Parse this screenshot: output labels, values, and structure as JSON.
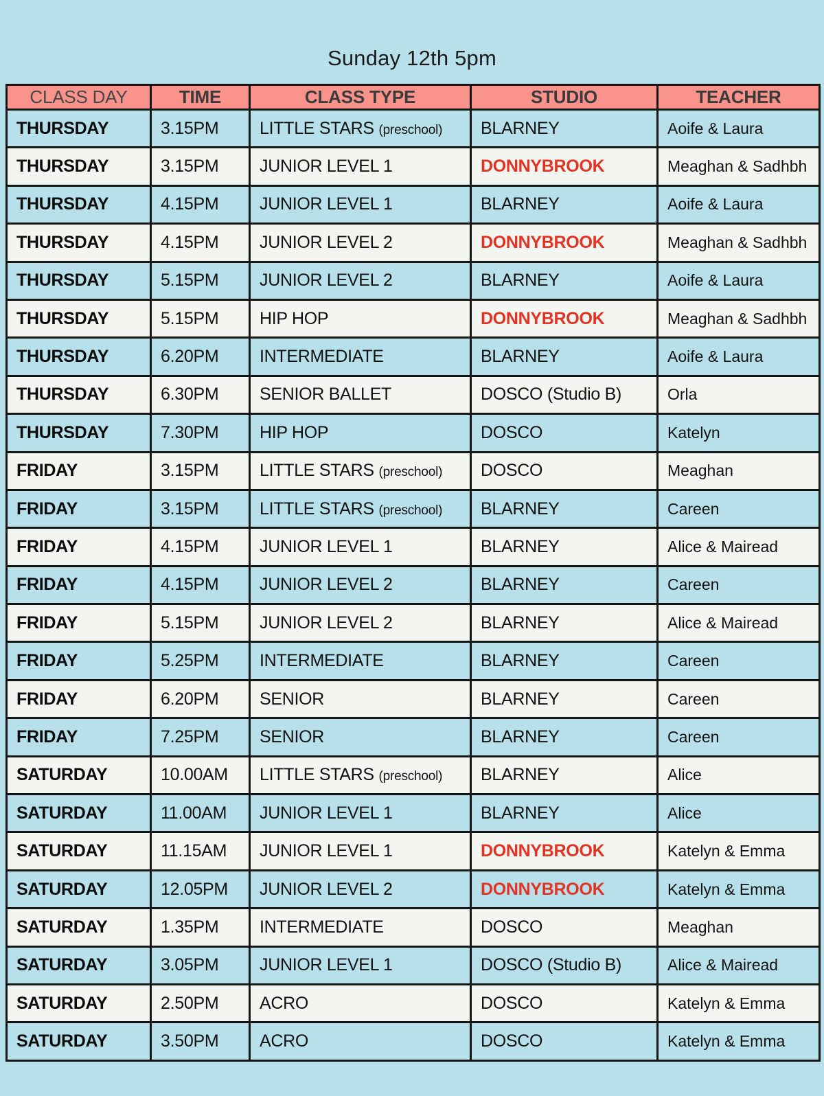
{
  "title": "Sunday 12th 5pm",
  "colors": {
    "page_background": "#b7e0ea",
    "header_background": "#f9938b",
    "row_alt_background": "#f3f5f0",
    "border": "#161616",
    "studio_highlight_text": "#e23323"
  },
  "table": {
    "headers": [
      "CLASS DAY",
      "TIME",
      "CLASS TYPE",
      "STUDIO",
      "TEACHER"
    ],
    "rows": [
      {
        "day": "THURSDAY",
        "time": "3.15PM",
        "class_type": "LITTLE STARS",
        "class_note": "(preschool)",
        "studio": "BLARNEY",
        "studio_highlight": false,
        "teacher": "Aoife & Laura"
      },
      {
        "day": "THURSDAY",
        "time": "3.15PM",
        "class_type": "JUNIOR LEVEL 1",
        "class_note": "",
        "studio": "DONNYBROOK",
        "studio_highlight": true,
        "teacher": "Meaghan & Sadhbh"
      },
      {
        "day": "THURSDAY",
        "time": "4.15PM",
        "class_type": "JUNIOR LEVEL 1",
        "class_note": "",
        "studio": "BLARNEY",
        "studio_highlight": false,
        "teacher": "Aoife & Laura"
      },
      {
        "day": "THURSDAY",
        "time": "4.15PM",
        "class_type": "JUNIOR LEVEL 2",
        "class_note": "",
        "studio": "DONNYBROOK",
        "studio_highlight": true,
        "teacher": "Meaghan & Sadhbh"
      },
      {
        "day": "THURSDAY",
        "time": "5.15PM",
        "class_type": "JUNIOR LEVEL 2",
        "class_note": "",
        "studio": "BLARNEY",
        "studio_highlight": false,
        "teacher": "Aoife & Laura"
      },
      {
        "day": "THURSDAY",
        "time": "5.15PM",
        "class_type": "HIP HOP",
        "class_note": "",
        "studio": "DONNYBROOK",
        "studio_highlight": true,
        "teacher": "Meaghan & Sadhbh"
      },
      {
        "day": "THURSDAY",
        "time": "6.20PM",
        "class_type": "INTERMEDIATE",
        "class_note": "",
        "studio": "BLARNEY",
        "studio_highlight": false,
        "teacher": "Aoife & Laura"
      },
      {
        "day": "THURSDAY",
        "time": "6.30PM",
        "class_type": "SENIOR BALLET",
        "class_note": "",
        "studio": "DOSCO (Studio B)",
        "studio_highlight": false,
        "teacher": "Orla"
      },
      {
        "day": "THURSDAY",
        "time": "7.30PM",
        "class_type": "HIP HOP",
        "class_note": "",
        "studio": "DOSCO",
        "studio_highlight": false,
        "teacher": "Katelyn"
      },
      {
        "day": "FRIDAY",
        "time": "3.15PM",
        "class_type": "LITTLE STARS",
        "class_note": "(preschool)",
        "studio": "DOSCO",
        "studio_highlight": false,
        "teacher": "Meaghan"
      },
      {
        "day": "FRIDAY",
        "time": "3.15PM",
        "class_type": "LITTLE STARS",
        "class_note": "(preschool)",
        "studio": "BLARNEY",
        "studio_highlight": false,
        "teacher": "Careen"
      },
      {
        "day": "FRIDAY",
        "time": "4.15PM",
        "class_type": "JUNIOR LEVEL 1",
        "class_note": "",
        "studio": "BLARNEY",
        "studio_highlight": false,
        "teacher": "Alice & Mairead"
      },
      {
        "day": "FRIDAY",
        "time": "4.15PM",
        "class_type": "JUNIOR LEVEL 2",
        "class_note": "",
        "studio": "BLARNEY",
        "studio_highlight": false,
        "teacher": "Careen"
      },
      {
        "day": "FRIDAY",
        "time": "5.15PM",
        "class_type": "JUNIOR LEVEL 2",
        "class_note": "",
        "studio": "BLARNEY",
        "studio_highlight": false,
        "teacher": "Alice & Mairead"
      },
      {
        "day": "FRIDAY",
        "time": "5.25PM",
        "class_type": "INTERMEDIATE",
        "class_note": "",
        "studio": "BLARNEY",
        "studio_highlight": false,
        "teacher": "Careen"
      },
      {
        "day": "FRIDAY",
        "time": "6.20PM",
        "class_type": "SENIOR",
        "class_note": "",
        "studio": "BLARNEY",
        "studio_highlight": false,
        "teacher": "Careen"
      },
      {
        "day": "FRIDAY",
        "time": "7.25PM",
        "class_type": "SENIOR",
        "class_note": "",
        "studio": "BLARNEY",
        "studio_highlight": false,
        "teacher": "Careen"
      },
      {
        "day": "SATURDAY",
        "time": "10.00AM",
        "class_type": "LITTLE STARS",
        "class_note": "(preschool)",
        "studio": "BLARNEY",
        "studio_highlight": false,
        "teacher": "Alice"
      },
      {
        "day": "SATURDAY",
        "time": "11.00AM",
        "class_type": "JUNIOR LEVEL 1",
        "class_note": "",
        "studio": "BLARNEY",
        "studio_highlight": false,
        "teacher": "Alice"
      },
      {
        "day": "SATURDAY",
        "time": "11.15AM",
        "class_type": "JUNIOR LEVEL 1",
        "class_note": "",
        "studio": "DONNYBROOK",
        "studio_highlight": true,
        "teacher": "Katelyn & Emma"
      },
      {
        "day": "SATURDAY",
        "time": "12.05PM",
        "class_type": "JUNIOR LEVEL 2",
        "class_note": "",
        "studio": "DONNYBROOK",
        "studio_highlight": true,
        "teacher": "Katelyn & Emma"
      },
      {
        "day": "SATURDAY",
        "time": "1.35PM",
        "class_type": "INTERMEDIATE",
        "class_note": "",
        "studio": "DOSCO",
        "studio_highlight": false,
        "teacher": "Meaghan"
      },
      {
        "day": "SATURDAY",
        "time": "3.05PM",
        "class_type": "JUNIOR LEVEL 1",
        "class_note": "",
        "studio": "DOSCO (Studio B)",
        "studio_highlight": false,
        "teacher": "Alice & Mairead"
      },
      {
        "day": "SATURDAY",
        "time": "2.50PM",
        "class_type": "ACRO",
        "class_note": "",
        "studio": "DOSCO",
        "studio_highlight": false,
        "teacher": "Katelyn & Emma"
      },
      {
        "day": "SATURDAY",
        "time": "3.50PM",
        "class_type": "ACRO",
        "class_note": "",
        "studio": "DOSCO",
        "studio_highlight": false,
        "teacher": "Katelyn & Emma"
      }
    ]
  }
}
